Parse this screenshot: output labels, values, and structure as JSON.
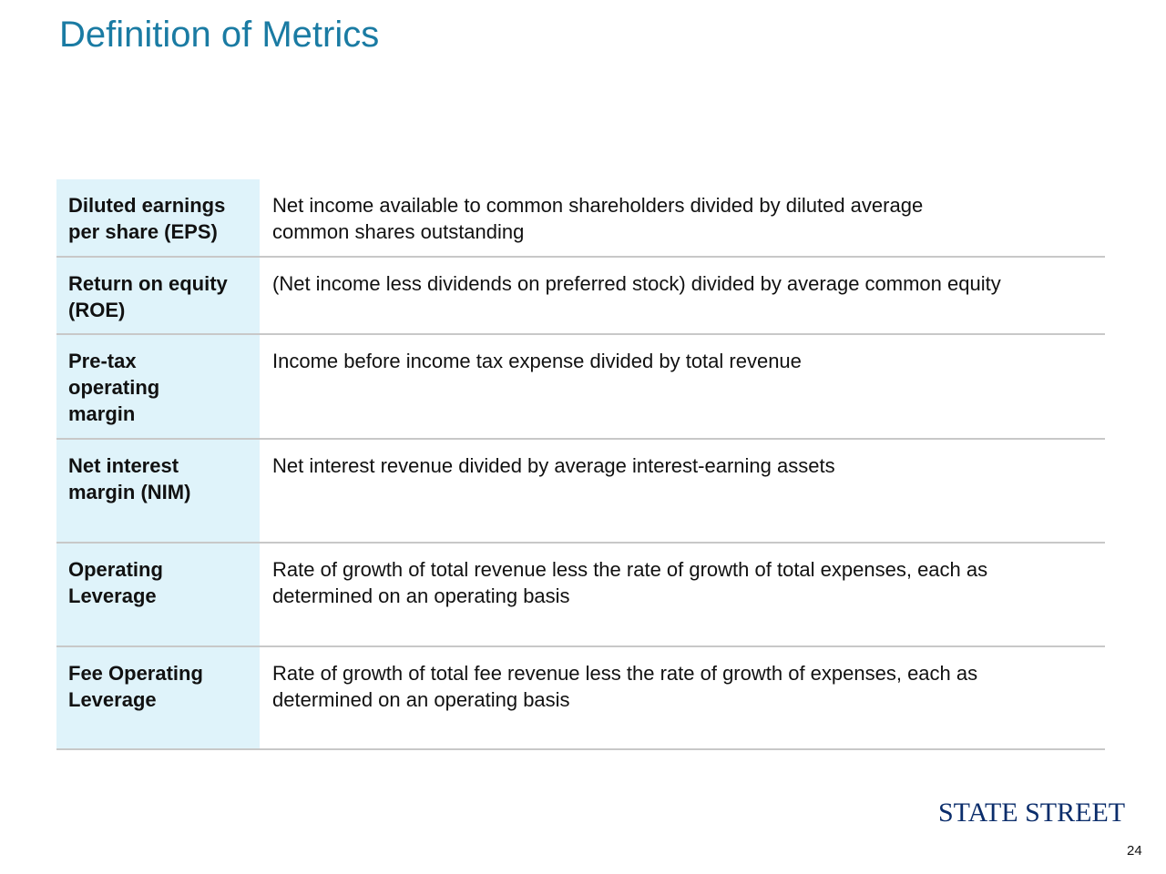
{
  "header": {
    "title": "Definition of Metrics"
  },
  "table": {
    "rows": [
      {
        "term": [
          "Diluted earnings",
          "per share (EPS)"
        ],
        "definition": [
          "Net income available to common shareholders divided by diluted average",
          "common shares outstanding"
        ]
      },
      {
        "term": [
          "Return on equity",
          "(ROE)"
        ],
        "definition": [
          "(Net income less dividends on preferred stock) divided by average common equity"
        ]
      },
      {
        "term": [
          "Pre-tax",
          "operating",
          "margin"
        ],
        "definition": [
          "Income before income tax expense divided by total revenue"
        ]
      },
      {
        "term": [
          "Net interest",
          "margin (NIM)"
        ],
        "definition": [
          "Net interest revenue divided by average interest-earning assets"
        ]
      },
      {
        "term": [
          "Operating",
          "Leverage"
        ],
        "definition": [
          "Rate of growth of total revenue less the rate of growth of total expenses, each as",
          "determined on an operating basis"
        ]
      },
      {
        "term": [
          "Fee Operating",
          "Leverage"
        ],
        "definition": [
          "Rate of growth of total fee revenue less the rate of growth of expenses, each as",
          "determined on an operating basis"
        ]
      }
    ]
  },
  "footer": {
    "logo": "STATE STREET",
    "page_number": "24"
  }
}
